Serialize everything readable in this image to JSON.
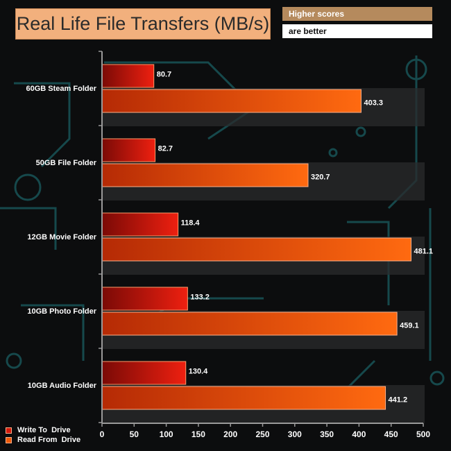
{
  "title": "Real Life File Transfers (MB/s)",
  "note": {
    "line1": "Higher scores",
    "line2": "are better"
  },
  "colors": {
    "write": "#d41a0c",
    "read": "#f05a0a",
    "label": "#ffffff",
    "axis": "#9a9a9a",
    "band": "#2a2b2c"
  },
  "chart_data": {
    "type": "bar",
    "orientation": "horizontal",
    "title": "Real Life File Transfers (MB/s)",
    "categories": [
      "60GB Steam Folder",
      "50GB File Folder",
      "12GB Movie Folder",
      "10GB Photo Folder",
      "10GB Audio Folder"
    ],
    "series": [
      {
        "name": "Write To  Drive",
        "values": [
          80.7,
          82.7,
          118.4,
          133.2,
          130.4
        ]
      },
      {
        "name": "Read From  Drive",
        "values": [
          403.3,
          320.7,
          481.1,
          459.1,
          441.2
        ]
      }
    ],
    "xlim": [
      0,
      500
    ],
    "xticks": [
      0,
      50,
      100,
      150,
      200,
      250,
      300,
      350,
      400,
      450,
      500
    ],
    "legend": "bottom-left",
    "grid": false
  }
}
